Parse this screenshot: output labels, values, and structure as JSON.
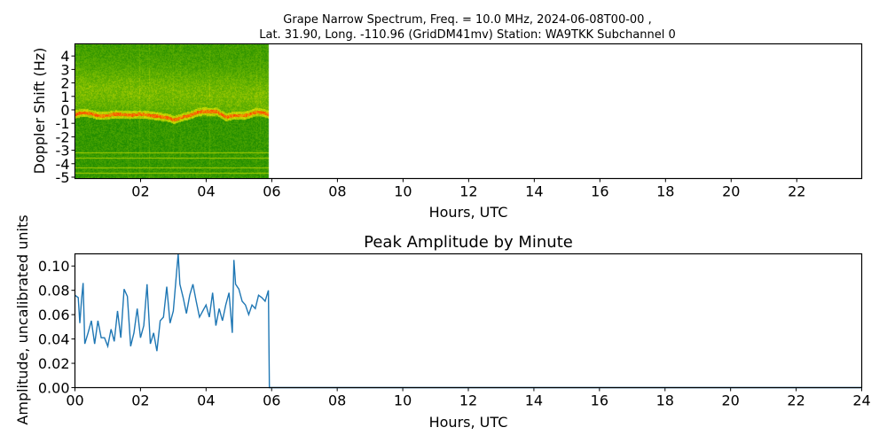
{
  "chart_data": [
    {
      "type": "heatmap",
      "title_line1": "Grape Narrow Spectrum, Freq. = 10.0 MHz, 2024-06-08T00-00 ,",
      "title_line2": "Lat.  31.90, Long. -110.96 (GridDM41mv) Station: WA9TKK Subchannel 0",
      "xlabel": "Hours, UTC",
      "ylabel": "Doppler Shift (Hz)",
      "xlim": [
        0,
        23.98
      ],
      "ylim": [
        -5.1,
        4.9
      ],
      "xticks": [
        2,
        4,
        6,
        8,
        10,
        12,
        14,
        16,
        18,
        20,
        22
      ],
      "xtick_labels": [
        "02",
        "04",
        "06",
        "08",
        "10",
        "12",
        "14",
        "16",
        "18",
        "20",
        "22"
      ],
      "yticks": [
        4,
        3,
        2,
        1,
        0,
        -1,
        -2,
        -3,
        -4,
        -5
      ],
      "ytick_labels": [
        "4",
        "3",
        "2",
        "1",
        "0",
        "-1",
        "-2",
        "-3",
        "-4",
        "-5"
      ],
      "data_end_hour": 5.9,
      "peak_track": {
        "hours": [
          0,
          0.5,
          1,
          1.5,
          2,
          2.5,
          3,
          3.3,
          3.8,
          4.3,
          4.6,
          5.0,
          5.5,
          5.9
        ],
        "doppler_hz": [
          -0.3,
          -0.25,
          -0.45,
          -0.25,
          -0.4,
          -0.35,
          -0.8,
          -0.4,
          -0.2,
          0.0,
          -0.6,
          -0.35,
          -0.2,
          -0.3
        ]
      },
      "constant_lines_hz": [
        -3.2,
        -3.6,
        -4.3,
        -4.7
      ],
      "colormap": [
        "#007a00",
        "#6fb800",
        "#e0e000",
        "#ff3000"
      ]
    },
    {
      "type": "line",
      "title": "Peak Amplitude by Minute",
      "xlabel": "Hours, UTC",
      "ylabel": "Amplitude, uncalibrated units",
      "xlim": [
        0,
        24
      ],
      "ylim": [
        0,
        0.11
      ],
      "xticks": [
        0,
        2,
        4,
        6,
        8,
        10,
        12,
        14,
        16,
        18,
        20,
        22,
        24
      ],
      "xtick_labels": [
        "00",
        "02",
        "04",
        "06",
        "08",
        "10",
        "12",
        "14",
        "16",
        "18",
        "20",
        "22",
        "24"
      ],
      "yticks": [
        0,
        0.02,
        0.04,
        0.06,
        0.08,
        0.1
      ],
      "ytick_labels": [
        "0.00",
        "0.02",
        "0.04",
        "0.06",
        "0.08",
        "0.10"
      ],
      "series": [
        {
          "name": "peak amplitude",
          "color": "#1f77b4",
          "x": [
            0,
            0.1,
            0.15,
            0.2,
            0.25,
            0.3,
            0.4,
            0.5,
            0.6,
            0.7,
            0.8,
            0.9,
            1.0,
            1.1,
            1.2,
            1.3,
            1.4,
            1.5,
            1.6,
            1.7,
            1.8,
            1.9,
            2.0,
            2.1,
            2.2,
            2.3,
            2.4,
            2.5,
            2.6,
            2.7,
            2.8,
            2.9,
            3.0,
            3.1,
            3.15,
            3.2,
            3.3,
            3.4,
            3.5,
            3.6,
            3.7,
            3.8,
            3.9,
            4.0,
            4.1,
            4.2,
            4.3,
            4.4,
            4.5,
            4.6,
            4.7,
            4.8,
            4.85,
            4.9,
            5.0,
            5.1,
            5.2,
            5.3,
            5.4,
            5.5,
            5.6,
            5.7,
            5.8,
            5.9,
            5.93,
            24
          ],
          "y": [
            0.076,
            0.074,
            0.053,
            0.072,
            0.086,
            0.036,
            0.045,
            0.055,
            0.036,
            0.055,
            0.041,
            0.041,
            0.034,
            0.048,
            0.038,
            0.063,
            0.041,
            0.081,
            0.075,
            0.034,
            0.045,
            0.065,
            0.041,
            0.051,
            0.085,
            0.036,
            0.045,
            0.03,
            0.055,
            0.058,
            0.083,
            0.053,
            0.063,
            0.095,
            0.11,
            0.085,
            0.074,
            0.061,
            0.076,
            0.085,
            0.071,
            0.058,
            0.063,
            0.068,
            0.058,
            0.078,
            0.051,
            0.065,
            0.055,
            0.068,
            0.078,
            0.045,
            0.105,
            0.085,
            0.081,
            0.071,
            0.068,
            0.06,
            0.068,
            0.065,
            0.076,
            0.074,
            0.071,
            0.08,
            0,
            0
          ]
        }
      ]
    }
  ]
}
